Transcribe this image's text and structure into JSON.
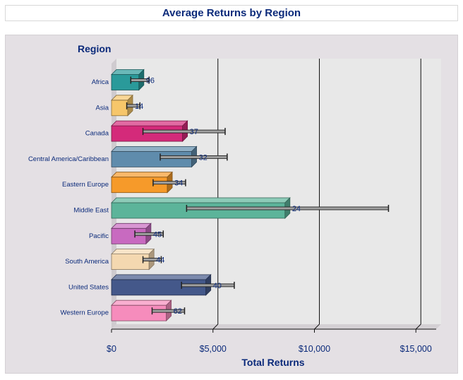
{
  "title": "Average Returns by Region",
  "chart_data": {
    "type": "bar",
    "title": "Average Returns by Region",
    "ylabel": "Region",
    "xlabel": "Total Returns",
    "xlim": [
      0,
      16000
    ],
    "xticks": [
      0,
      5000,
      10000,
      15000
    ],
    "xtick_labels": [
      "$0",
      "$5,000",
      "$10,000",
      "$15,000"
    ],
    "grid": true,
    "categories": [
      "Africa",
      "Asia",
      "Canada",
      "Central America/Caribbean",
      "Eastern Europe",
      "Middle East",
      "Pacific",
      "South America",
      "United States",
      "Western Europe"
    ],
    "values": [
      1350,
      800,
      3500,
      3950,
      2750,
      8550,
      1700,
      1850,
      4650,
      2700
    ],
    "error_low": [
      950,
      750,
      1550,
      2400,
      2050,
      3700,
      1150,
      1550,
      3450,
      2000
    ],
    "error_high": [
      1850,
      1400,
      5600,
      5700,
      3650,
      13650,
      2550,
      2450,
      6050,
      3600
    ],
    "data_labels": [
      "96",
      "14",
      "37",
      "32",
      "34",
      "24",
      "45",
      "44",
      "40",
      "62"
    ],
    "colors": [
      "#2a9a9a",
      "#f6c66a",
      "#d42a7a",
      "#5f8cac",
      "#f69a2a",
      "#5cb49a",
      "#c86ac0",
      "#f4d8b0",
      "#44588a",
      "#f68cbc"
    ]
  }
}
